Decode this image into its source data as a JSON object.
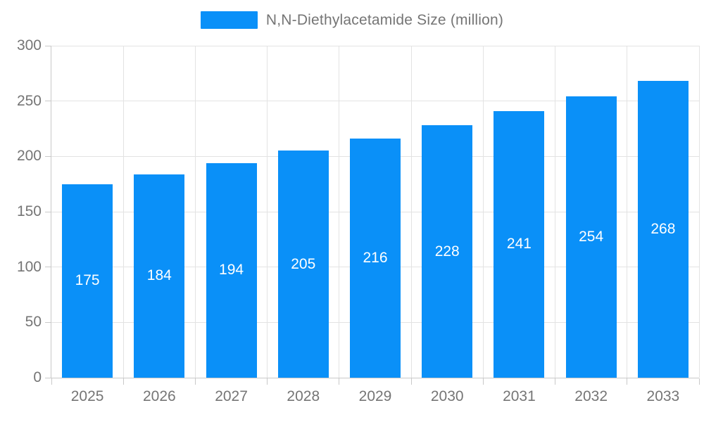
{
  "chart_data": {
    "type": "bar",
    "title": "N,N-Diethylacetamide Size (million)",
    "categories": [
      "2025",
      "2026",
      "2027",
      "2028",
      "2029",
      "2030",
      "2031",
      "2032",
      "2033"
    ],
    "values": [
      175,
      184,
      194,
      205,
      216,
      228,
      241,
      254,
      268
    ],
    "xlabel": "",
    "ylabel": "",
    "ylim": [
      0,
      300
    ],
    "ytick_interval": 50,
    "grid": true,
    "legend_position": "top-center",
    "value_labels": "inside-center",
    "colors": {
      "bar": "#0a90f8",
      "value_label_text": "#ffffff",
      "axis_text": "#757575",
      "gridline": "#e3e3e3",
      "axis_line": "#c9c9c9",
      "background": "#ffffff"
    }
  },
  "legend": {
    "series_label": "N,N-Diethylacetamide Size (million)"
  }
}
